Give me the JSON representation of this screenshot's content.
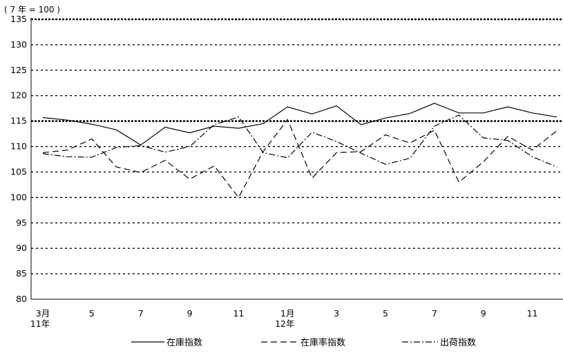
{
  "chart_data": {
    "type": "line",
    "unit_label": "( 7 年 = 100 )",
    "ylim": [
      80,
      135
    ],
    "y_ticks": [
      80,
      85,
      90,
      95,
      100,
      105,
      110,
      115,
      120,
      125,
      130,
      135
    ],
    "grid": "horizontal dotted",
    "legend_position": "bottom",
    "x_tick_labels": [
      {
        "index": 0,
        "lines": [
          "3月",
          "11年"
        ]
      },
      {
        "index": 2,
        "lines": [
          "5"
        ]
      },
      {
        "index": 4,
        "lines": [
          "7"
        ]
      },
      {
        "index": 6,
        "lines": [
          "9"
        ]
      },
      {
        "index": 8,
        "lines": [
          "11"
        ]
      },
      {
        "index": 10,
        "lines": [
          "1月",
          "12年"
        ]
      },
      {
        "index": 12,
        "lines": [
          "3"
        ]
      },
      {
        "index": 14,
        "lines": [
          "5"
        ]
      },
      {
        "index": 16,
        "lines": [
          "7"
        ]
      },
      {
        "index": 18,
        "lines": [
          "9"
        ]
      },
      {
        "index": 20,
        "lines": [
          "11"
        ]
      }
    ],
    "x_count": 22,
    "series": [
      {
        "name": "在庫指数",
        "style": "solid",
        "values": [
          115.7,
          115.2,
          114.4,
          113.3,
          110.3,
          113.8,
          112.7,
          114.0,
          113.6,
          114.5,
          117.8,
          116.4,
          118.0,
          114.3,
          115.6,
          116.5,
          118.5,
          116.6,
          116.6,
          117.8,
          116.6,
          115.8
        ]
      },
      {
        "name": "在庫率指数",
        "style": "dashed",
        "values": [
          108.8,
          109.3,
          111.5,
          106.0,
          104.9,
          107.3,
          103.6,
          106.2,
          100.0,
          109.0,
          115.3,
          103.8,
          108.8,
          109.0,
          112.3,
          110.7,
          113.2,
          103.0,
          107.0,
          112.0,
          109.3,
          113.1
        ]
      },
      {
        "name": "出荷指数",
        "style": "dashdot",
        "values": [
          108.6,
          108.0,
          107.9,
          109.8,
          110.2,
          108.9,
          110.0,
          114.3,
          115.8,
          108.8,
          107.8,
          112.8,
          111.0,
          108.7,
          106.5,
          107.7,
          114.0,
          116.2,
          111.7,
          111.2,
          108.0,
          106.0
        ]
      }
    ]
  }
}
